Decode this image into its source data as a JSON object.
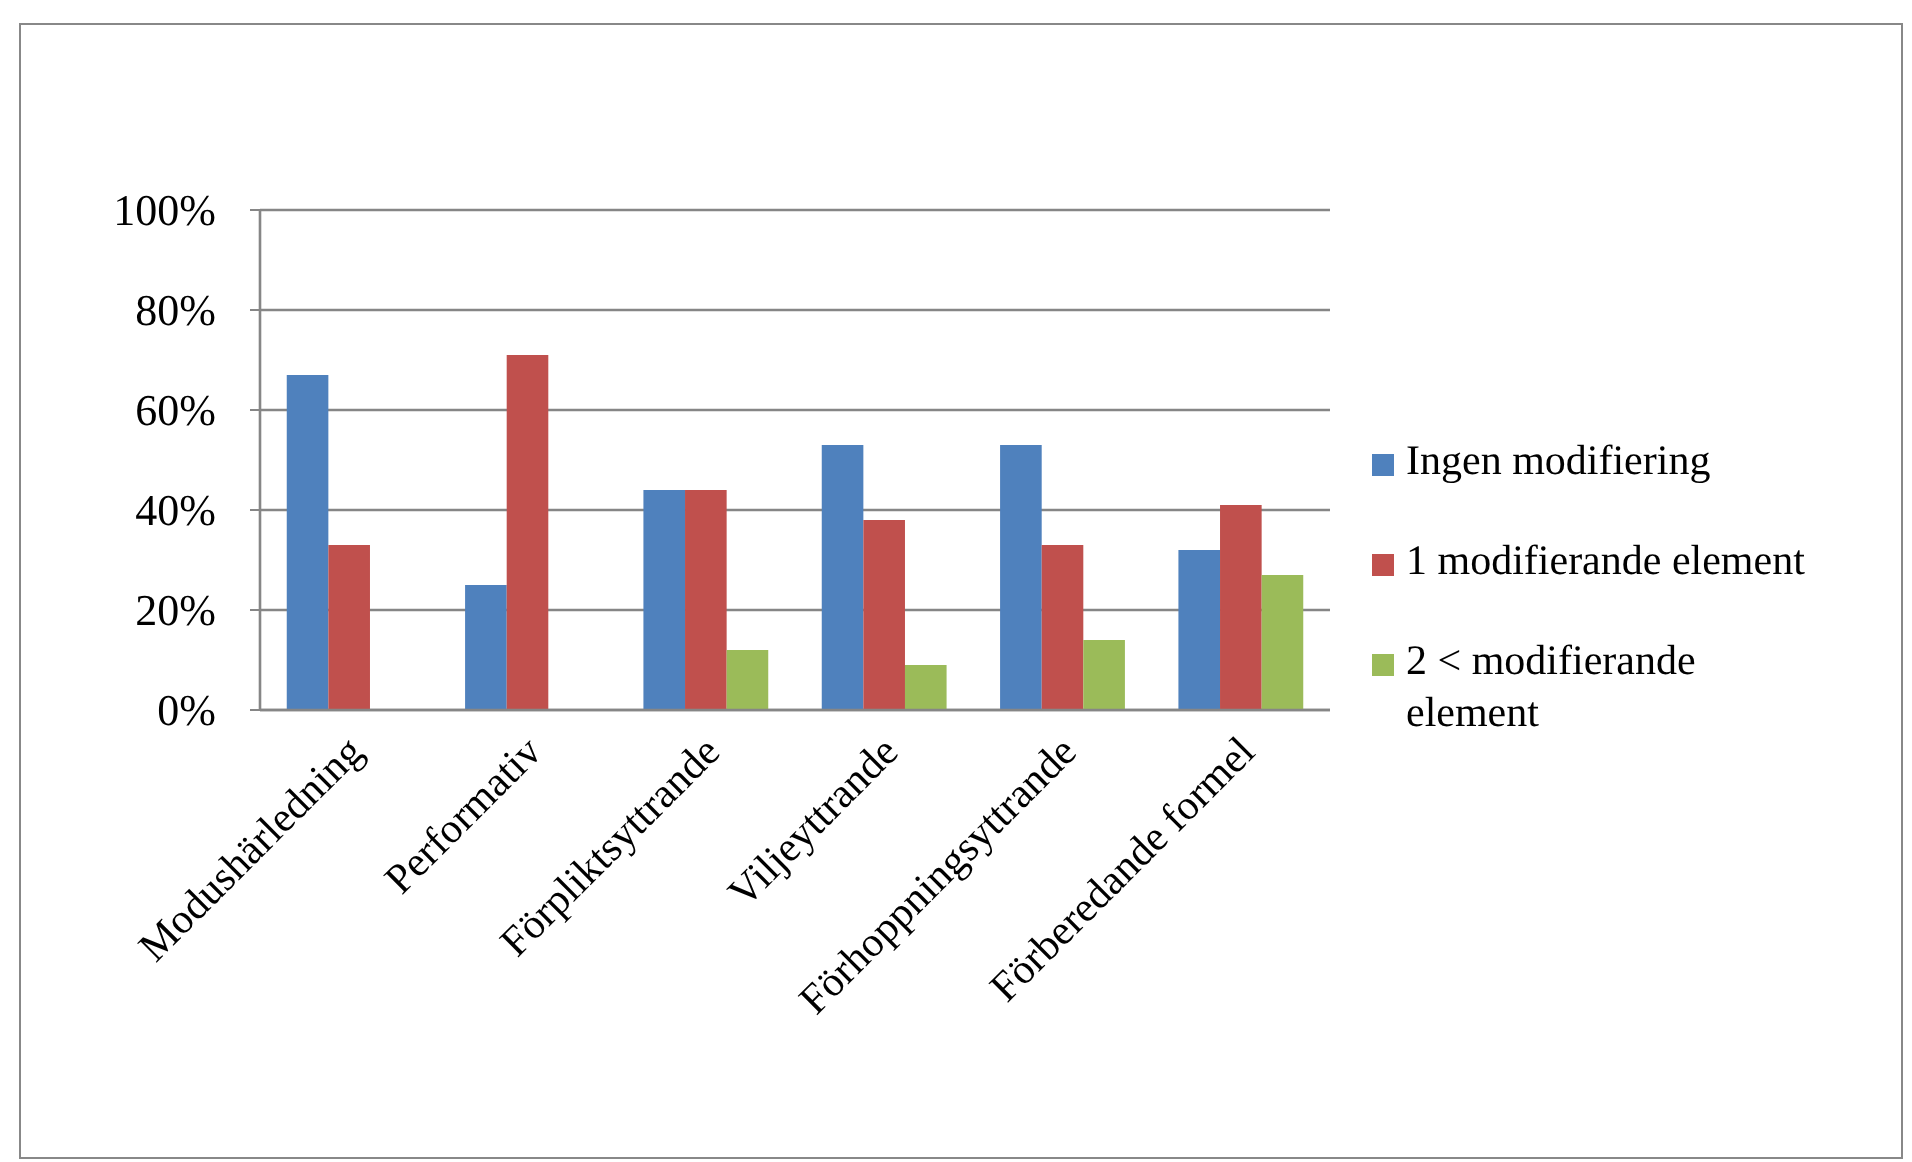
{
  "chart_data": {
    "type": "bar",
    "categories": [
      "Modushärledning",
      "Performativ",
      "Förpliktsyttrande",
      "Viljeyttrande",
      "Förhoppningsyttrande",
      "Förberedande formel"
    ],
    "series": [
      {
        "name": "Ingen modifiering",
        "color": "#4f81bd",
        "values": [
          67,
          25,
          44,
          53,
          53,
          32
        ]
      },
      {
        "name": "1 modifierande element",
        "color": "#c0504d",
        "values": [
          33,
          71,
          44,
          38,
          33,
          41
        ]
      },
      {
        "name": "2 < modifierande element",
        "color": "#9bbb59",
        "values": [
          null,
          null,
          12,
          9,
          14,
          27
        ]
      }
    ],
    "ylim": [
      0,
      100
    ],
    "yticks": [
      {
        "value": 0,
        "label": "0%"
      },
      {
        "value": 20,
        "label": "20%"
      },
      {
        "value": 40,
        "label": "40%"
      },
      {
        "value": 60,
        "label": "60%"
      },
      {
        "value": 80,
        "label": "80%"
      },
      {
        "value": 100,
        "label": "100%"
      }
    ],
    "grid": "y",
    "legend": "right"
  }
}
